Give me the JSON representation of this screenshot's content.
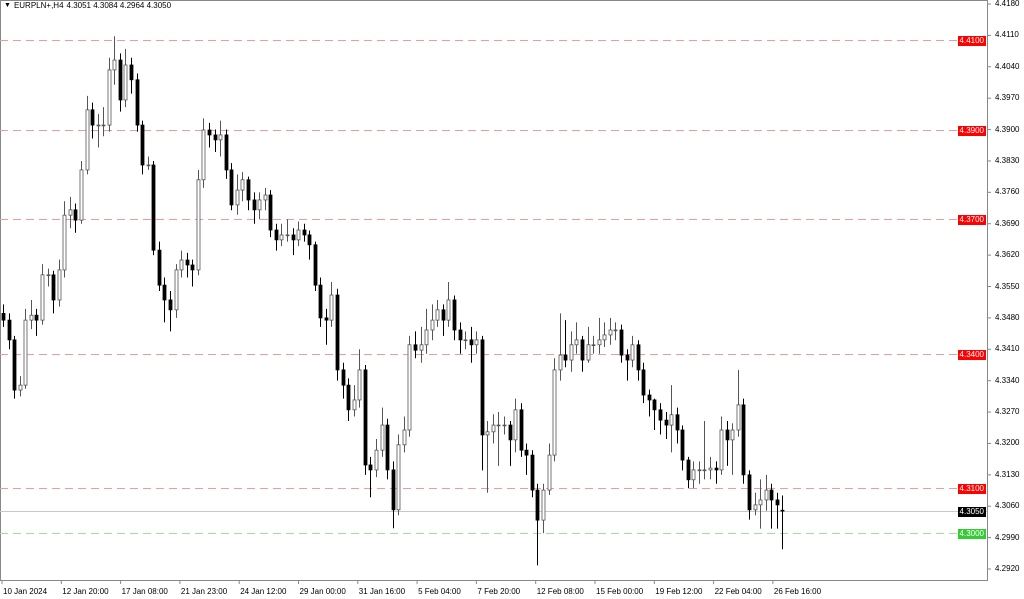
{
  "header": {
    "symbol": "EURPLN+,H4",
    "ohlc": "4.3051 4.3084 4.2964 4.3050",
    "menu_icon": "triangle-down-icon"
  },
  "chart_data": {
    "type": "candlestick",
    "title": "EURPLN+,H4",
    "ylim": [
      4.292,
      4.418
    ],
    "y_ticks": [
      "4.4180",
      "4.4110",
      "4.4040",
      "4.3970",
      "4.3900",
      "4.3830",
      "4.3760",
      "4.3690",
      "4.3620",
      "4.3550",
      "4.3480",
      "4.3410",
      "4.3340",
      "4.3270",
      "4.3200",
      "4.3130",
      "4.3060",
      "4.2990",
      "4.2920"
    ],
    "x_tick_labels": [
      "10 Jan 2024",
      "12 Jan 20:00",
      "17 Jan 08:00",
      "21 Jan 23:00",
      "24 Jan 12:00",
      "29 Jan 00:00",
      "31 Jan 16:00",
      "5 Feb 04:00",
      "7 Feb 20:00",
      "12 Feb 08:00",
      "15 Feb 00:00",
      "19 Feb 12:00",
      "22 Feb 04:00",
      "26 Feb 16:00"
    ],
    "grid": false,
    "colors": {
      "bull_body": "#ffffff",
      "bear_body": "#000000",
      "outline": "#000000",
      "resistance": "#ff0000",
      "support": "#33cc33",
      "current": "#000000"
    },
    "levels": [
      {
        "price": "4.4100",
        "kind": "resistance"
      },
      {
        "price": "4.3900",
        "kind": "resistance"
      },
      {
        "price": "4.3700",
        "kind": "resistance"
      },
      {
        "price": "4.3400",
        "kind": "resistance"
      },
      {
        "price": "4.3100",
        "kind": "resistance"
      },
      {
        "price": "4.3000",
        "kind": "support"
      },
      {
        "price": "4.3050",
        "kind": "current"
      }
    ],
    "candles_ohlc": [
      [
        4.349,
        4.351,
        4.346,
        4.3475
      ],
      [
        4.3475,
        4.349,
        4.341,
        4.3431
      ],
      [
        4.3431,
        4.344,
        4.33,
        4.3319
      ],
      [
        4.3319,
        4.335,
        4.3305,
        4.333
      ],
      [
        4.333,
        4.35,
        4.3322,
        4.3475
      ],
      [
        4.3475,
        4.352,
        4.3455,
        4.3486
      ],
      [
        4.3486,
        4.35,
        4.344,
        4.3475
      ],
      [
        4.3475,
        4.36,
        4.3465,
        4.3576
      ],
      [
        4.3576,
        4.359,
        4.355,
        4.3576
      ],
      [
        4.3576,
        4.3585,
        4.349,
        4.352
      ],
      [
        4.352,
        4.361,
        4.3505,
        4.3587
      ],
      [
        4.3587,
        4.374,
        4.357,
        4.3709
      ],
      [
        4.3709,
        4.375,
        4.368,
        4.3721
      ],
      [
        4.3721,
        4.3735,
        4.367,
        4.3698
      ],
      [
        4.3698,
        4.383,
        4.369,
        4.381
      ],
      [
        4.381,
        4.3975,
        4.38,
        4.3944
      ],
      [
        4.3944,
        4.396,
        4.388,
        4.391
      ],
      [
        4.391,
        4.3935,
        4.386,
        4.391
      ],
      [
        4.391,
        4.395,
        4.3885,
        4.391
      ],
      [
        4.391,
        4.406,
        4.3895,
        4.4033
      ],
      [
        4.4033,
        4.4108,
        4.4,
        4.4055
      ],
      [
        4.4055,
        4.407,
        4.394,
        4.3966
      ],
      [
        4.3966,
        4.408,
        4.395,
        4.4044
      ],
      [
        4.4044,
        4.406,
        4.398,
        4.4011
      ],
      [
        4.4011,
        4.4025,
        4.3895,
        4.391
      ],
      [
        4.391,
        4.392,
        4.38,
        4.3821
      ],
      [
        4.3821,
        4.384,
        4.381,
        4.3821
      ],
      [
        4.3821,
        4.383,
        4.362,
        4.3631
      ],
      [
        4.3631,
        4.365,
        4.354,
        4.3553
      ],
      [
        4.3553,
        4.357,
        4.347,
        4.352
      ],
      [
        4.352,
        4.354,
        4.345,
        4.3498
      ],
      [
        4.3498,
        4.36,
        4.348,
        4.3587
      ],
      [
        4.3587,
        4.363,
        4.357,
        4.3609
      ],
      [
        4.3609,
        4.3625,
        4.357,
        4.3598
      ],
      [
        4.3598,
        4.361,
        4.355,
        4.3587
      ],
      [
        4.3587,
        4.381,
        4.3575,
        4.3788
      ],
      [
        4.3788,
        4.3925,
        4.377,
        4.3899
      ],
      [
        4.3899,
        4.3915,
        4.386,
        4.3888
      ],
      [
        4.3888,
        4.39,
        4.385,
        4.3877
      ],
      [
        4.3877,
        4.392,
        4.384,
        4.3888
      ],
      [
        4.3888,
        4.39,
        4.379,
        4.381
      ],
      [
        4.381,
        4.3825,
        4.372,
        4.3732
      ],
      [
        4.3732,
        4.38,
        4.371,
        4.3765
      ],
      [
        4.3765,
        4.3805,
        4.374,
        4.3788
      ],
      [
        4.3788,
        4.3795,
        4.372,
        4.3743
      ],
      [
        4.3743,
        4.376,
        4.369,
        4.3721
      ],
      [
        4.3721,
        4.376,
        4.37,
        4.3743
      ],
      [
        4.3743,
        4.377,
        4.372,
        4.3754
      ],
      [
        4.3754,
        4.3765,
        4.366,
        4.3676
      ],
      [
        4.3676,
        4.369,
        4.363,
        4.3654
      ],
      [
        4.3654,
        4.369,
        4.364,
        4.3665
      ],
      [
        4.3665,
        4.37,
        4.365,
        4.3665
      ],
      [
        4.3665,
        4.368,
        4.362,
        4.3654
      ],
      [
        4.3654,
        4.3695,
        4.364,
        4.3676
      ],
      [
        4.3676,
        4.369,
        4.365,
        4.3665
      ],
      [
        4.3665,
        4.3675,
        4.361,
        4.3643
      ],
      [
        4.3643,
        4.365,
        4.354,
        4.3553
      ],
      [
        4.3553,
        4.357,
        4.346,
        4.348
      ],
      [
        4.348,
        4.35,
        4.342,
        4.3475
      ],
      [
        4.3475,
        4.356,
        4.346,
        4.3531
      ],
      [
        4.3531,
        4.3545,
        4.334,
        4.3364
      ],
      [
        4.3364,
        4.338,
        4.33,
        4.333
      ],
      [
        4.333,
        4.3345,
        4.325,
        4.3275
      ],
      [
        4.3275,
        4.333,
        4.326,
        4.3297
      ],
      [
        4.3297,
        4.341,
        4.328,
        4.3364
      ],
      [
        4.3364,
        4.3375,
        4.313,
        4.3152
      ],
      [
        4.3152,
        4.317,
        4.308,
        4.3141
      ],
      [
        4.3141,
        4.321,
        4.3125,
        4.3185
      ],
      [
        4.3185,
        4.328,
        4.317,
        4.3241
      ],
      [
        4.3241,
        4.3255,
        4.312,
        4.3141
      ],
      [
        4.3141,
        4.316,
        4.3011,
        4.3052
      ],
      [
        4.3052,
        4.322,
        4.304,
        4.3197
      ],
      [
        4.3197,
        4.326,
        4.318,
        4.323
      ],
      [
        4.323,
        4.344,
        4.3215,
        4.342
      ],
      [
        4.342,
        4.345,
        4.339,
        4.3408
      ],
      [
        4.3408,
        4.346,
        4.338,
        4.342
      ],
      [
        4.342,
        4.35,
        4.34,
        4.3453
      ],
      [
        4.3453,
        4.351,
        4.343,
        4.3475
      ],
      [
        4.3475,
        4.352,
        4.346,
        4.3498
      ],
      [
        4.3498,
        4.351,
        4.344,
        4.3475
      ],
      [
        4.3475,
        4.356,
        4.346,
        4.352
      ],
      [
        4.352,
        4.353,
        4.343,
        4.3453
      ],
      [
        4.3453,
        4.347,
        4.34,
        4.3431
      ],
      [
        4.3431,
        4.345,
        4.341,
        4.3431
      ],
      [
        4.3431,
        4.346,
        4.338,
        4.342
      ],
      [
        4.342,
        4.345,
        4.34,
        4.3431
      ],
      [
        4.3431,
        4.344,
        4.314,
        4.3219
      ],
      [
        4.3219,
        4.325,
        4.309,
        4.3226
      ],
      [
        4.3226,
        4.3265,
        4.32,
        4.3241
      ],
      [
        4.3241,
        4.327,
        4.315,
        4.3241
      ],
      [
        4.3241,
        4.326,
        4.322,
        4.3241
      ],
      [
        4.3241,
        4.325,
        4.315,
        4.3208
      ],
      [
        4.3208,
        4.33,
        4.318,
        4.3275
      ],
      [
        4.3275,
        4.329,
        4.317,
        4.3185
      ],
      [
        4.3185,
        4.32,
        4.313,
        4.3174
      ],
      [
        4.3174,
        4.3185,
        4.308,
        4.3096
      ],
      [
        4.3096,
        4.311,
        4.2928,
        4.3029
      ],
      [
        4.3029,
        4.311,
        4.3,
        4.3096
      ],
      [
        4.3096,
        4.32,
        4.3085,
        4.3174
      ],
      [
        4.3174,
        4.339,
        4.316,
        4.3364
      ],
      [
        4.3364,
        4.349,
        4.334,
        4.3397
      ],
      [
        4.3397,
        4.3475,
        4.337,
        4.3386
      ],
      [
        4.3386,
        4.345,
        4.336,
        4.342
      ],
      [
        4.342,
        4.347,
        4.34,
        4.3431
      ],
      [
        4.3431,
        4.344,
        4.336,
        4.3386
      ],
      [
        4.3386,
        4.346,
        4.338,
        4.342
      ],
      [
        4.342,
        4.344,
        4.34,
        4.342
      ],
      [
        4.342,
        4.348,
        4.34,
        4.3431
      ],
      [
        4.3431,
        4.347,
        4.3415,
        4.3442
      ],
      [
        4.3442,
        4.348,
        4.342,
        4.3453
      ],
      [
        4.3453,
        4.347,
        4.343,
        4.3453
      ],
      [
        4.3453,
        4.3465,
        4.338,
        4.3397
      ],
      [
        4.3397,
        4.341,
        4.334,
        4.3386
      ],
      [
        4.3386,
        4.344,
        4.337,
        4.342
      ],
      [
        4.342,
        4.343,
        4.334,
        4.3364
      ],
      [
        4.3364,
        4.338,
        4.329,
        4.3308
      ],
      [
        4.3308,
        4.332,
        4.326,
        4.3297
      ],
      [
        4.3297,
        4.33,
        4.323,
        4.3275
      ],
      [
        4.3275,
        4.329,
        4.322,
        4.3252
      ],
      [
        4.3252,
        4.327,
        4.321,
        4.3241
      ],
      [
        4.3241,
        4.333,
        4.318,
        4.3264
      ],
      [
        4.3264,
        4.328,
        4.32,
        4.323
      ],
      [
        4.323,
        4.324,
        4.314,
        4.3163
      ],
      [
        4.3163,
        4.317,
        4.31,
        4.3119
      ],
      [
        4.3119,
        4.316,
        4.31,
        4.3141
      ],
      [
        4.3141,
        4.316,
        4.311,
        4.3141
      ],
      [
        4.3141,
        4.325,
        4.312,
        4.3141
      ],
      [
        4.3141,
        4.317,
        4.312,
        4.3145
      ],
      [
        4.3145,
        4.316,
        4.311,
        4.3141
      ],
      [
        4.3141,
        4.326,
        4.313,
        4.323
      ],
      [
        4.323,
        4.325,
        4.315,
        4.3208
      ],
      [
        4.3208,
        4.3245,
        4.313,
        4.323
      ],
      [
        4.323,
        4.3364,
        4.3215,
        4.3286
      ],
      [
        4.3286,
        4.33,
        4.311,
        4.313
      ],
      [
        4.313,
        4.314,
        4.303,
        4.3052
      ],
      [
        4.3052,
        4.309,
        4.304,
        4.3063
      ],
      [
        4.3063,
        4.312,
        4.301,
        4.3074
      ],
      [
        4.3074,
        4.313,
        4.305,
        4.3096
      ],
      [
        4.3096,
        4.311,
        4.301,
        4.3074
      ],
      [
        4.3074,
        4.309,
        4.301,
        4.3063
      ],
      [
        4.3051,
        4.3084,
        4.2964,
        4.305
      ]
    ]
  }
}
